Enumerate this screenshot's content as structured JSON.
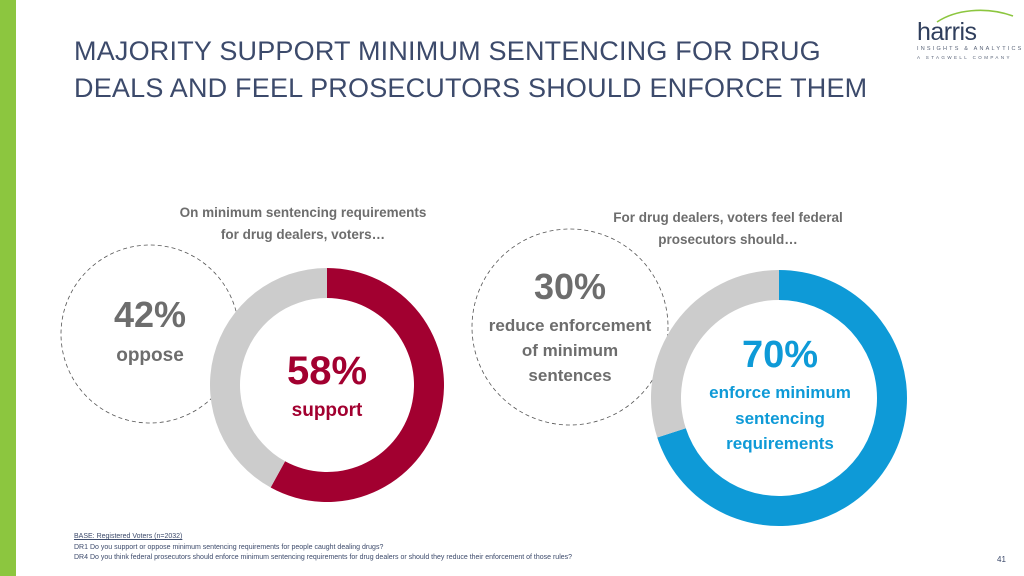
{
  "title": {
    "line1": "MAJORITY SUPPORT MINIMUM SENTENCING FOR DRUG",
    "line2": "DEALS AND FEEL PROSECUTORS SHOULD ENFORCE THEM"
  },
  "logo": {
    "word": "harris",
    "sub1": "INSIGHTS & ANALYTICS",
    "sub2": "A STAGWELL COMPANY"
  },
  "colors": {
    "accent_green": "#8cc63f",
    "support_red": "#a20030",
    "enforce_blue": "#0e9ad7",
    "remainder_gray": "#cccccc",
    "title_navy": "#3c4a6b"
  },
  "chart_data": [
    {
      "type": "pie",
      "heading_line1": "On minimum sentencing requirements",
      "heading_line2": "for drug dealers, voters…",
      "slices": [
        {
          "name": "support",
          "value": 58,
          "label": "58%",
          "color": "#a20030"
        },
        {
          "name": "oppose",
          "value": 42,
          "label": "42%",
          "color": "#cccccc"
        }
      ],
      "center": {
        "pct": "58%",
        "text": "support"
      },
      "outside": {
        "pct": "42%",
        "text": "oppose"
      }
    },
    {
      "type": "pie",
      "heading_line1": "For drug dealers, voters feel federal",
      "heading_line2": "prosecutors should…",
      "slices": [
        {
          "name": "enforce minimum sentencing requirements",
          "value": 70,
          "label": "70%",
          "color": "#0e9ad7"
        },
        {
          "name": "reduce enforcement of minimum sentences",
          "value": 30,
          "label": "30%",
          "color": "#cccccc"
        }
      ],
      "center": {
        "pct": "70%",
        "lines": [
          "enforce minimum",
          "sentencing",
          "requirements"
        ]
      },
      "outside": {
        "pct": "30%",
        "lines": [
          "reduce enforcement",
          "of minimum",
          "sentences"
        ]
      }
    }
  ],
  "footer": {
    "base": "BASE: Registered Voters (n=2032)",
    "q1": "DR1 Do you support or oppose minimum sentencing requirements for people caught dealing drugs?",
    "q2": "DR4 Do you think federal prosecutors should enforce minimum sentencing requirements for drug dealers or should they reduce their enforcement of those rules?"
  },
  "page_number": "41"
}
